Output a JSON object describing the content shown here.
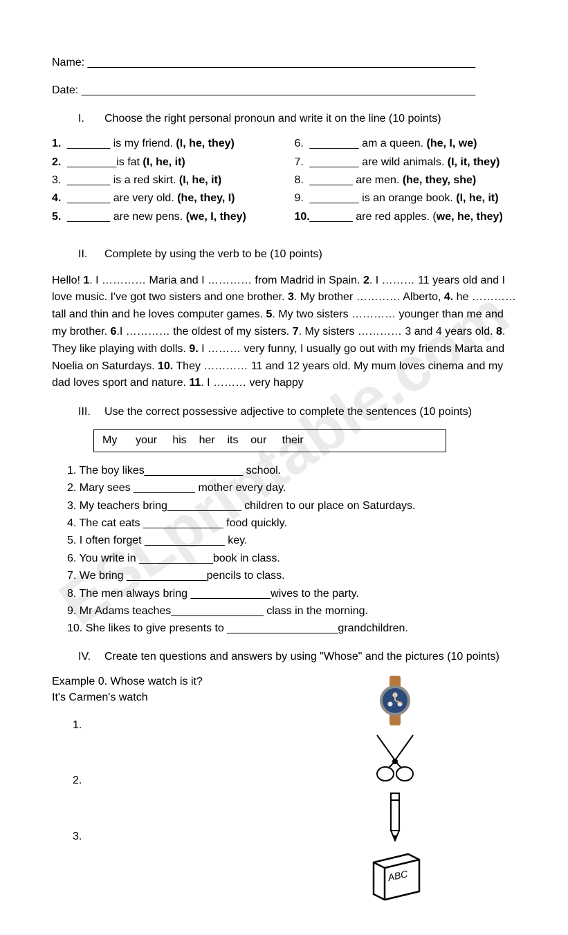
{
  "header": {
    "name_label": "Name: _______________________________________________________________",
    "date_label": "Date: ________________________________________________________________"
  },
  "section1": {
    "heading_num": "I.",
    "heading_text": "Choose the right personal pronoun and write it on the line (10 points)",
    "left": [
      {
        "n": "1.",
        "before": "_______ is my friend. ",
        "opts": "(I, he, they)",
        "bold_n": true
      },
      {
        "n": "2.",
        "before": "________is fat ",
        "opts": "(I, he, it)",
        "bold_n": true
      },
      {
        "n": "3.",
        "before": "_______ is a red skirt. ",
        "opts": "(I, he, it)",
        "bold_n": false
      },
      {
        "n": "4.",
        "before": "_______ are very old. ",
        "opts": "(he, they, I)",
        "bold_n": true
      },
      {
        "n": "5.",
        "before": "_______ are new pens. ",
        "opts": "(we, I, they)",
        "bold_n": true
      }
    ],
    "right": [
      {
        "n": "6.",
        "before": "________ am a queen. ",
        "opts": "(he, I, we)"
      },
      {
        "n": "7.",
        "before": "________ are wild animals. ",
        "opts": "(I, it, they)"
      },
      {
        "n": "8.",
        "before": "_______ are men. ",
        "opts": "(he, they, she)"
      },
      {
        "n": "9.",
        "before": "________ is an orange book. ",
        "opts": "(I, he, it)"
      },
      {
        "n": "10.",
        "before": "_______ are red apples. (",
        "opts": "we, he, they)",
        "bold_n": true
      }
    ]
  },
  "section2": {
    "heading_num": "II.",
    "heading_text": "Complete by using the verb to be (10 points)",
    "para_parts": [
      "Hello! ",
      "1",
      ". I ………… Maria and I ………… from Madrid in Spain. ",
      "2",
      ". I ……… 11 years old and I love music. I've  got two sisters and one brother. ",
      "3",
      ". My brother ………… Alberto, ",
      "4.",
      " he ………… tall and thin and he loves computer games. ",
      "5",
      ". My two sisters ………… younger than me and my brother. ",
      "6",
      ".I  ………… the oldest of my sisters. ",
      "7",
      ". My sisters ………… 3 and 4 years old. ",
      "8",
      ". They like playing with dolls. ",
      "9.",
      " I ……… very funny, I usually go out with my friends Marta and Noelia on Saturdays. ",
      "10.",
      " They ………… 11 and 12 years old. My mum loves cinema and my dad loves sport and nature. ",
      "11",
      ". I ……… very happy"
    ]
  },
  "section3": {
    "heading_num": "III.",
    "heading_text": "Use the correct possessive adjective to complete the sentences (10 points)",
    "box": "My      your     his    her    its    our     their",
    "items": [
      "1. The boy likes________________ school.",
      "2. Mary sees __________ mother every day.",
      "3. My teachers bring____________ children to our place on Saturdays.",
      "4. The cat eats _____________ food quickly.",
      "5. I often forget _____________ key.",
      "6. You write in ____________book in class.",
      "7. We bring  _____________pencils to class.",
      "8. The men always bring  _____________wives to the party.",
      "9. Mr Adams teaches_______________ class in the morning.",
      "10. She likes to give presents to  __________________grandchildren."
    ]
  },
  "section4": {
    "heading_num": "IV.",
    "heading_text": "Create ten questions and answers by using \"Whose\" and the pictures (10 points)",
    "example_q": "Example 0. Whose watch is it?",
    "example_a": "It's Carmen's watch",
    "numbers": [
      "1.",
      "2.",
      "3."
    ],
    "watch": {
      "face_color": "#2b4a7a",
      "bezel_color": "#8a8a8a",
      "strap_color": "#b5793f",
      "hand_color": "#d8b87a"
    },
    "book_label": "ABC"
  },
  "watermark": "ESLprintable.com"
}
